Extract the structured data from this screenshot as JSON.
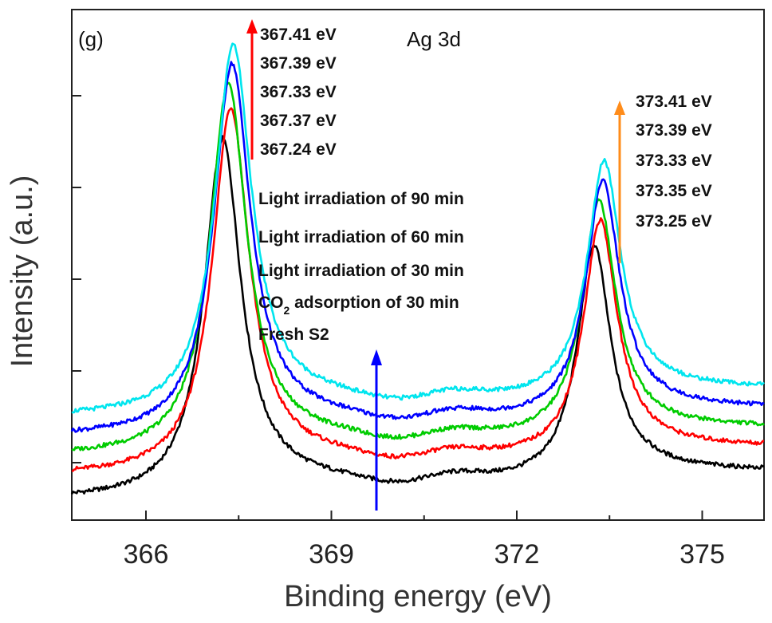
{
  "chart_data": {
    "type": "line",
    "panel_label": "(g)",
    "element_label": "Ag 3d",
    "xlabel": "Binding energy (eV)",
    "ylabel": "Intensity (a.u.)",
    "xlim": [
      364.8,
      376.0
    ],
    "ylim": [
      0,
      100
    ],
    "x_ticks": [
      366,
      369,
      372,
      375
    ],
    "x_tick_labels": [
      "366",
      "369",
      "372",
      "375"
    ],
    "grid": false,
    "peaks_3d52": [
      367.41,
      367.39,
      367.33,
      367.37,
      367.24
    ],
    "peaks_3d32": [
      373.41,
      373.39,
      373.33,
      373.35,
      373.25
    ],
    "peak_labels_3d52": [
      "367.41 eV",
      "367.39 eV",
      "367.33 eV",
      "367.37 eV",
      "367.24 eV"
    ],
    "peak_labels_3d32": [
      "373.41 eV",
      "373.39 eV",
      "373.33 eV",
      "373.35 eV",
      "373.25 eV"
    ],
    "legend": [
      "Light irradiation of 90 min",
      "Light irradiation of 60 min",
      "Light irradiation of 30 min",
      "CO2 adsorption of 30 min",
      "Fresh S2"
    ],
    "legend_co2_prefix": "CO",
    "legend_co2_sub": "2",
    "legend_co2_suffix": " adsorption of 30 min",
    "series": [
      {
        "name": "Fresh S2",
        "color": "#000000",
        "baseline": 2,
        "peak1_x": 367.24,
        "peak1_height": 76,
        "peak2_x": 373.25,
        "peak2_height": 54
      },
      {
        "name": "CO2 adsorption of 30 min",
        "color": "#ff0000",
        "baseline": 7,
        "peak1_x": 367.37,
        "peak1_height": 82,
        "peak2_x": 373.35,
        "peak2_height": 59
      },
      {
        "name": "Light irradiation of 30 min",
        "color": "#00cc00",
        "baseline": 11,
        "peak1_x": 367.33,
        "peak1_height": 87,
        "peak2_x": 373.33,
        "peak2_height": 63
      },
      {
        "name": "Light irradiation of 60 min",
        "color": "#0000ff",
        "baseline": 15,
        "peak1_x": 367.39,
        "peak1_height": 91,
        "peak2_x": 373.39,
        "peak2_height": 67
      },
      {
        "name": "Light irradiation of 90 min",
        "color": "#00e5ee",
        "baseline": 19,
        "peak1_x": 367.41,
        "peak1_height": 95,
        "peak2_x": 373.41,
        "peak2_height": 71
      }
    ],
    "arrows": [
      {
        "name": "red-shift-arrow",
        "color": "#ff0000"
      },
      {
        "name": "blue-increase-arrow",
        "color": "#0000ff"
      },
      {
        "name": "orange-shift-arrow",
        "color": "#ff8c1a"
      }
    ]
  }
}
